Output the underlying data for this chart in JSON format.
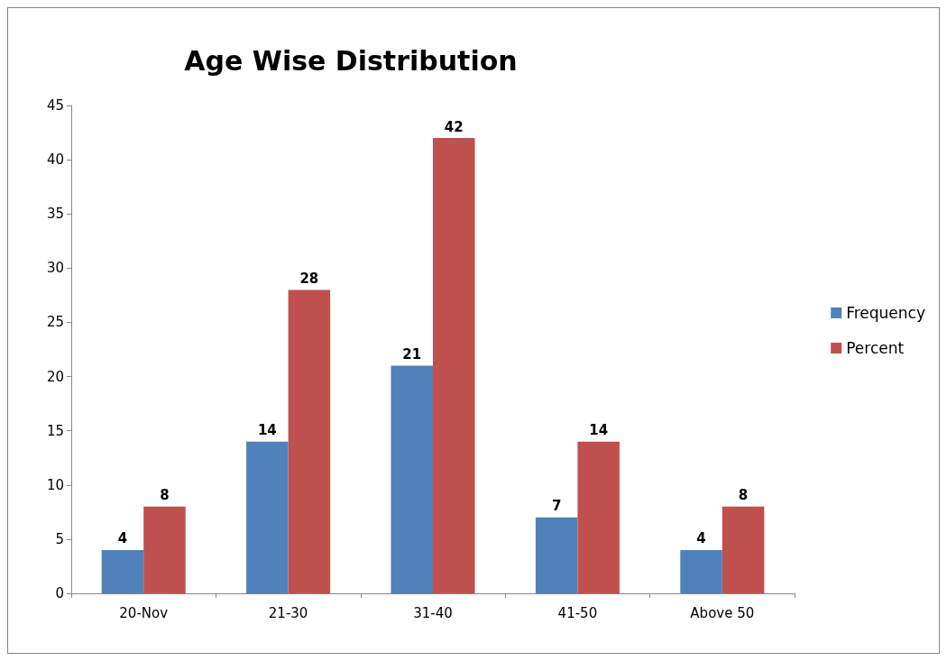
{
  "chart_data": {
    "type": "bar",
    "title": "Age Wise Distribution",
    "categories": [
      "20-Nov",
      "21-30",
      "31-40",
      "41-50",
      "Above 50"
    ],
    "series": [
      {
        "name": "Frequency",
        "color": "#4f81bd",
        "values": [
          4,
          14,
          21,
          7,
          4
        ]
      },
      {
        "name": "Percent",
        "color": "#c0504d",
        "values": [
          8,
          28,
          42,
          14,
          8
        ]
      }
    ],
    "ylim": [
      0,
      45
    ],
    "yticks": [
      0,
      5,
      10,
      15,
      20,
      25,
      30,
      35,
      40,
      45
    ],
    "grid": false,
    "legend": "right",
    "data_labels": true
  }
}
